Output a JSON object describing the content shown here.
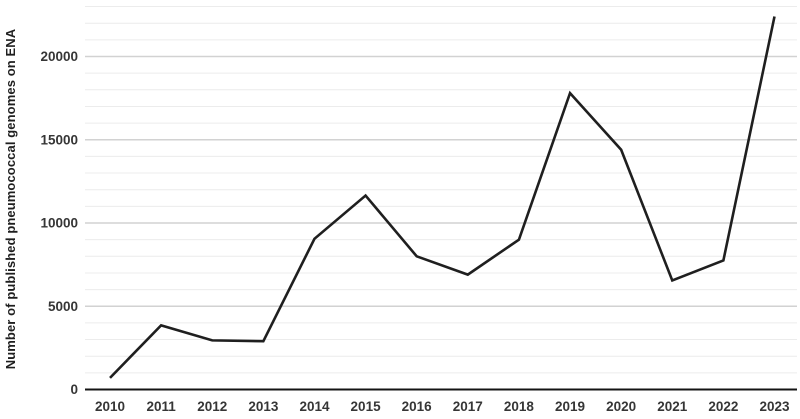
{
  "chart_data": {
    "type": "line",
    "title": "",
    "xlabel": "",
    "ylabel": "Number of published pneumococcal genomes on ENA",
    "categories": [
      "2010",
      "2011",
      "2012",
      "2013",
      "2014",
      "2015",
      "2016",
      "2017",
      "2018",
      "2019",
      "2020",
      "2021",
      "2022",
      "2023"
    ],
    "values": [
      700,
      3850,
      2950,
      2900,
      9050,
      11650,
      8000,
      6900,
      9000,
      17800,
      14400,
      6550,
      7750,
      22400
    ],
    "y_ticks": [
      0,
      5000,
      10000,
      15000,
      20000
    ],
    "y_tick_labels": [
      "0",
      "5000",
      "10000",
      "15000",
      "20000"
    ],
    "y_minor_step": 1000,
    "ylim": [
      0,
      23000
    ],
    "grid": true,
    "legend": "none",
    "colors": {
      "line": "#1f1f1f",
      "axis": "#141414",
      "major_grid": "#d2d2d2",
      "minor_grid": "#ececec",
      "tick_label": "#363636"
    }
  }
}
